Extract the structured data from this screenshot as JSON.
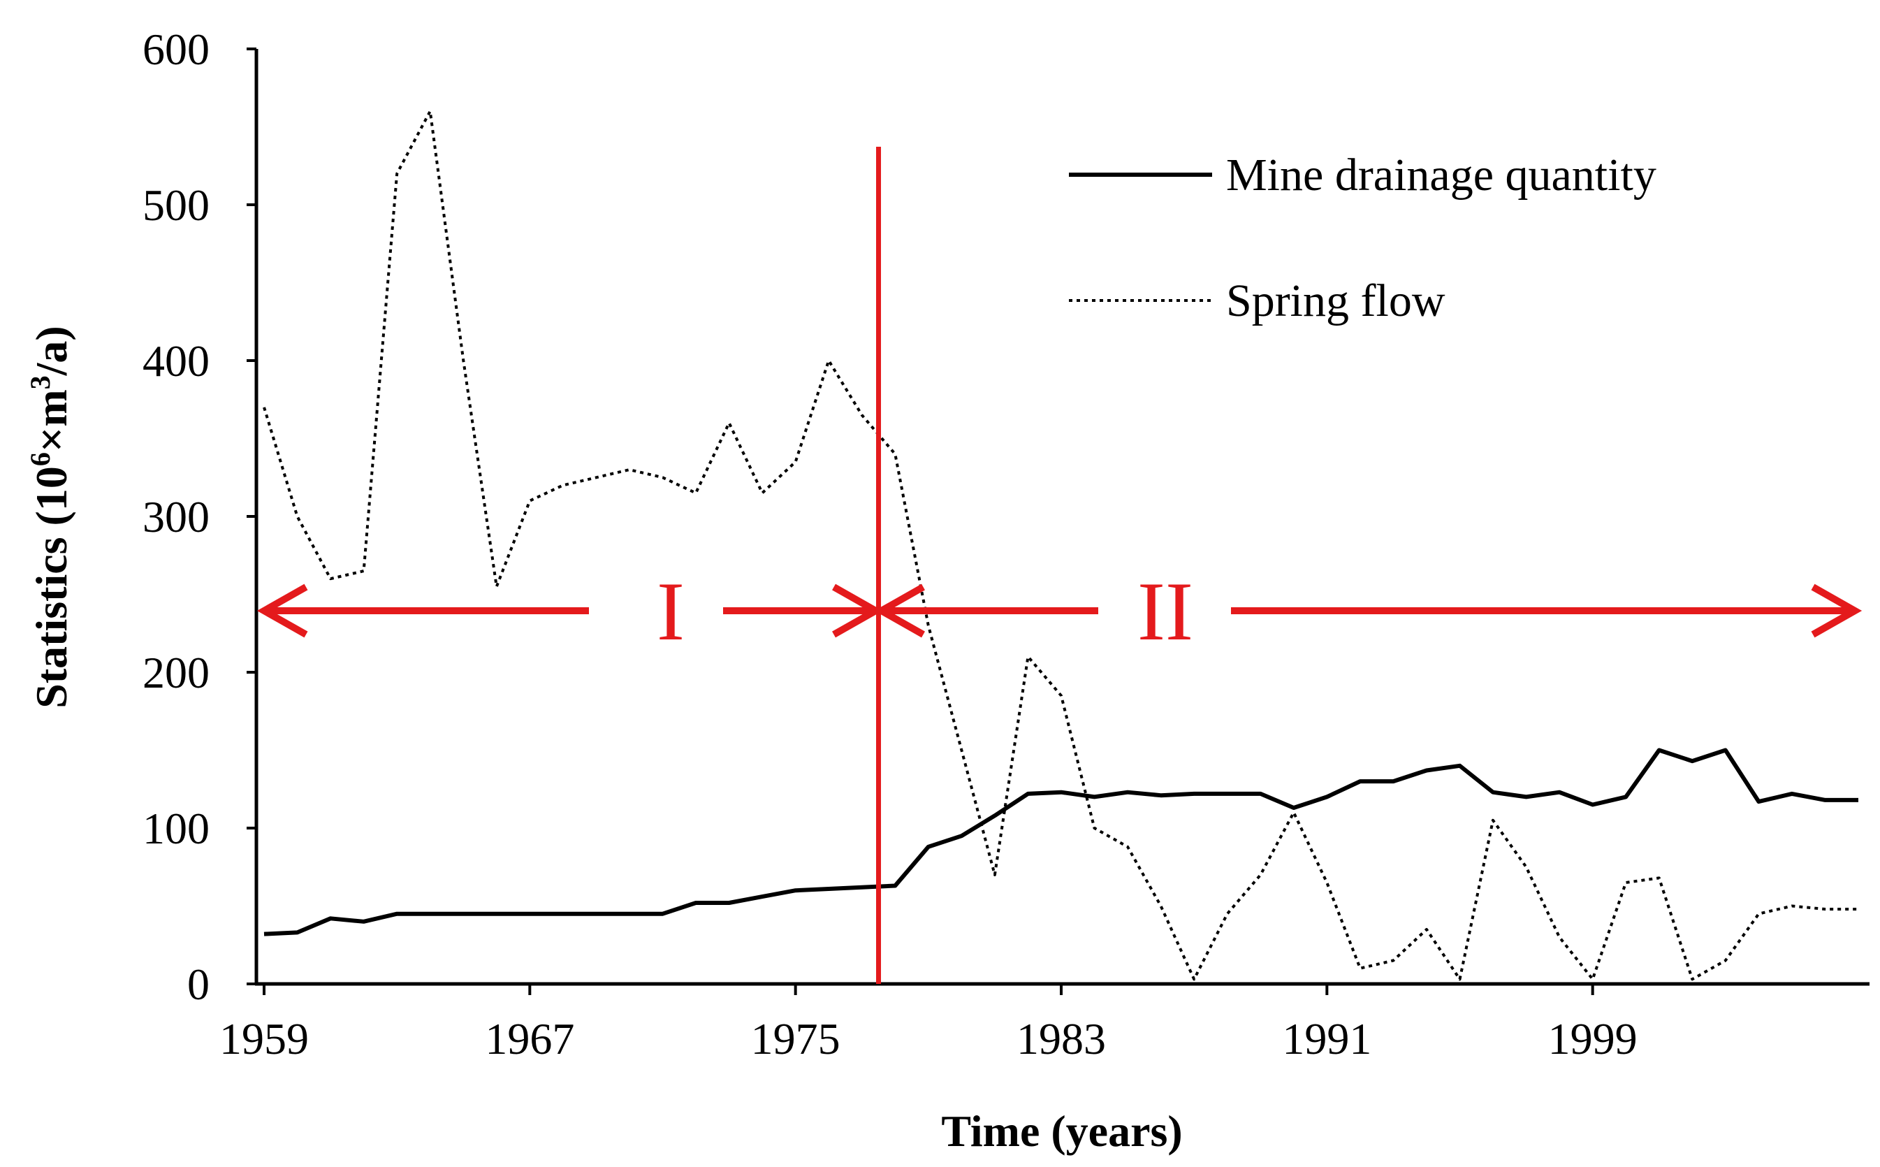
{
  "chart_data": {
    "type": "line",
    "title": "",
    "xlabel": "Time (years)",
    "ylabel": {
      "base": "Statistics (10",
      "exp1": "6",
      "mid": "×m",
      "exp2": "3",
      "tail": "/a)"
    },
    "xlim": [
      1959,
      2007
    ],
    "ylim": [
      0,
      600
    ],
    "xticks": [
      1959,
      1967,
      1975,
      1983,
      1991,
      1999
    ],
    "yticks": [
      0,
      100,
      200,
      300,
      400,
      500,
      600
    ],
    "grid": false,
    "legend_position": "top-right",
    "series": [
      {
        "name": "Mine drainage quantity",
        "style": "solid",
        "color": "#000000",
        "x": [
          1959,
          1960,
          1961,
          1962,
          1963,
          1964,
          1965,
          1966,
          1967,
          1968,
          1969,
          1970,
          1971,
          1972,
          1973,
          1974,
          1975,
          1976,
          1977,
          1978,
          1979,
          1980,
          1981,
          1982,
          1983,
          1984,
          1985,
          1986,
          1987,
          1988,
          1989,
          1990,
          1991,
          1992,
          1993,
          1994,
          1995,
          1996,
          1997,
          1998,
          1999,
          2000,
          2001,
          2002,
          2003,
          2004,
          2005,
          2006,
          2007
        ],
        "y": [
          32,
          33,
          42,
          40,
          45,
          45,
          45,
          45,
          45,
          45,
          45,
          45,
          45,
          52,
          52,
          56,
          60,
          61,
          62,
          63,
          88,
          95,
          108,
          122,
          123,
          120,
          123,
          121,
          122,
          122,
          122,
          113,
          120,
          130,
          130,
          137,
          140,
          123,
          120,
          123,
          115,
          120,
          150,
          143,
          150,
          117,
          122,
          118,
          118
        ]
      },
      {
        "name": "Spring flow",
        "style": "dotted",
        "color": "#000000",
        "x": [
          1959,
          1960,
          1961,
          1962,
          1963,
          1964,
          1965,
          1966,
          1967,
          1968,
          1969,
          1970,
          1971,
          1972,
          1973,
          1974,
          1975,
          1976,
          1977,
          1978,
          1979,
          1980,
          1981,
          1982,
          1983,
          1984,
          1985,
          1986,
          1987,
          1988,
          1989,
          1990,
          1991,
          1992,
          1993,
          1994,
          1995,
          1996,
          1997,
          1998,
          1999,
          2000,
          2001,
          2002,
          2003,
          2004,
          2005,
          2006,
          2007
        ],
        "y": [
          370,
          300,
          260,
          265,
          520,
          560,
          400,
          255,
          310,
          320,
          325,
          330,
          325,
          315,
          360,
          315,
          335,
          400,
          365,
          340,
          230,
          150,
          70,
          210,
          185,
          100,
          88,
          50,
          3,
          45,
          70,
          110,
          65,
          10,
          15,
          35,
          3,
          105,
          75,
          30,
          3,
          65,
          68,
          3,
          15,
          45,
          50,
          48,
          48
        ]
      }
    ],
    "annotations": {
      "divider_year": 1977.5,
      "phase_one": "I",
      "phase_two": "II",
      "color": "#e41a1c"
    }
  }
}
